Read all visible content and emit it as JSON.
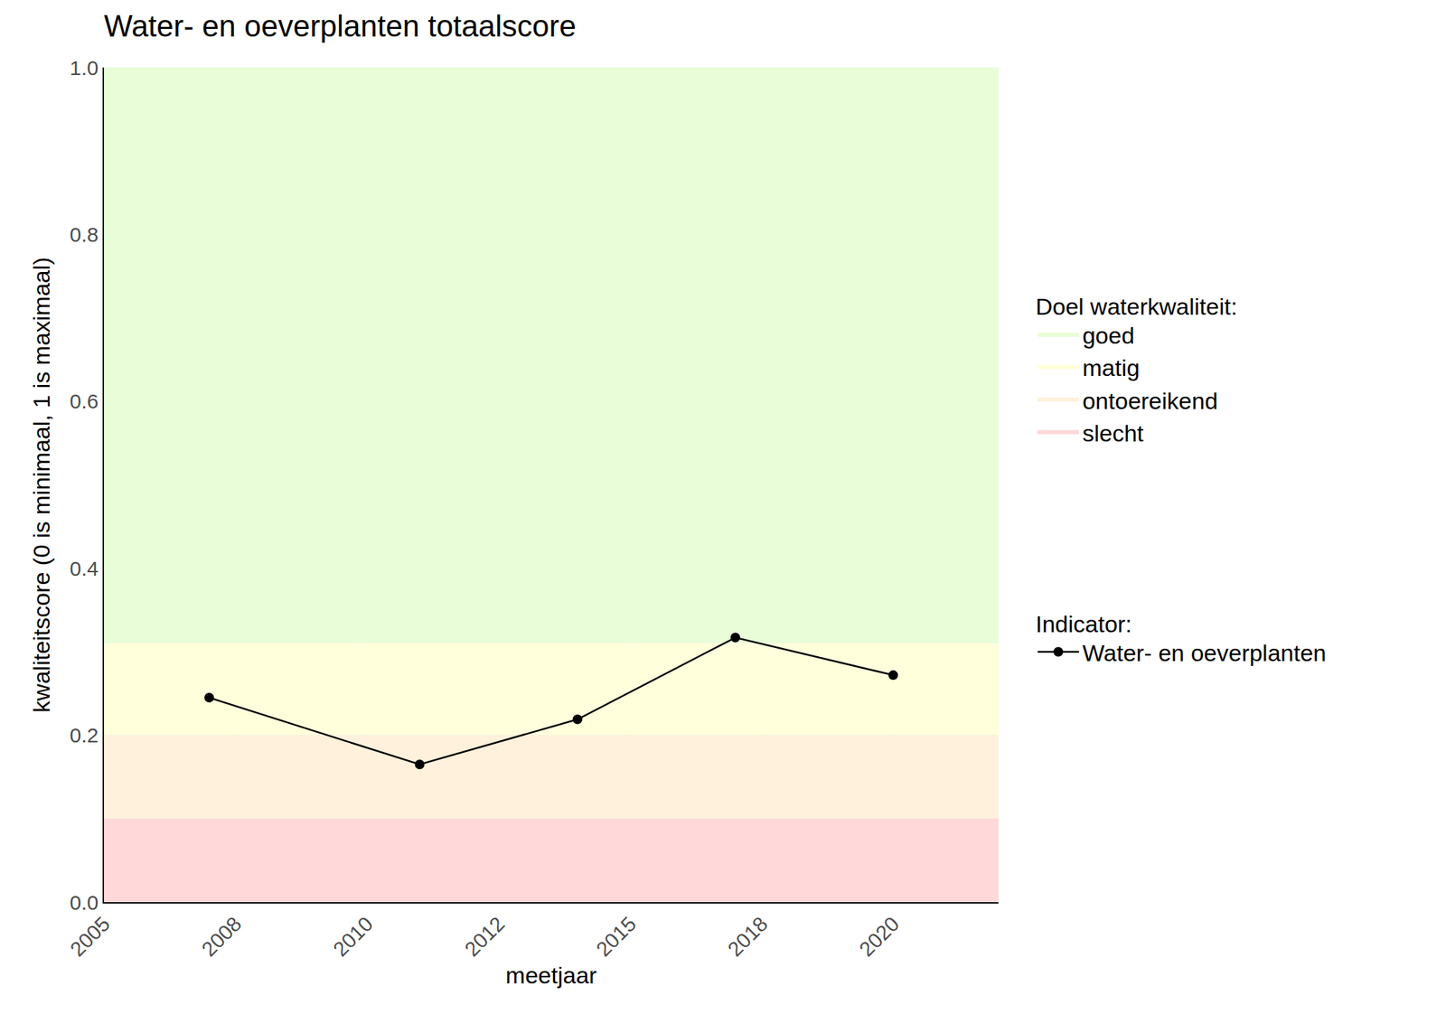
{
  "chart_data": {
    "type": "line",
    "title": "Water- en oeverplanten totaalscore",
    "x_label": "meetjaar",
    "y_label": "kwaliteitscore (0 is minimaal, 1 is maximaal)",
    "x": [
      2007,
      2011,
      2014,
      2017,
      2020
    ],
    "series": [
      {
        "name": "Water- en oeverplanten",
        "color": "#000000",
        "marker": "circle",
        "line_style": "solid",
        "values": [
          0.245,
          0.165,
          0.219,
          0.317,
          0.272
        ]
      }
    ],
    "series_legend_title": "Indicator:",
    "bands_legend_title": "Doel waterkwaliteit:",
    "bands": [
      {
        "name": "goed",
        "from": 0.31,
        "to": 1.0,
        "color": "#e8fdd8"
      },
      {
        "name": "matig",
        "from": 0.2,
        "to": 0.31,
        "color": "#ffffdb"
      },
      {
        "name": "ontoereikend",
        "from": 0.1,
        "to": 0.2,
        "color": "#fff1db"
      },
      {
        "name": "slecht",
        "from": 0.0,
        "to": 0.1,
        "color": "#ffd8da"
      }
    ],
    "xlim": [
      2005,
      2022
    ],
    "xticks": [
      {
        "value": 2005,
        "label": "2005"
      },
      {
        "value": 2007.5,
        "label": "2008"
      },
      {
        "value": 2010,
        "label": "2010"
      },
      {
        "value": 2012.5,
        "label": "2012"
      },
      {
        "value": 2015,
        "label": "2015"
      },
      {
        "value": 2017.5,
        "label": "2018"
      },
      {
        "value": 2020,
        "label": "2020"
      }
    ],
    "ylim": [
      0,
      1
    ],
    "yticks": [
      {
        "value": 0,
        "label": "0.0"
      },
      {
        "value": 0.2,
        "label": "0.2"
      },
      {
        "value": 0.4,
        "label": "0.4"
      },
      {
        "value": 0.6,
        "label": "0.6"
      },
      {
        "value": 0.8,
        "label": "0.8"
      },
      {
        "value": 1,
        "label": "1.0"
      }
    ],
    "grid": true,
    "legend": "right"
  }
}
